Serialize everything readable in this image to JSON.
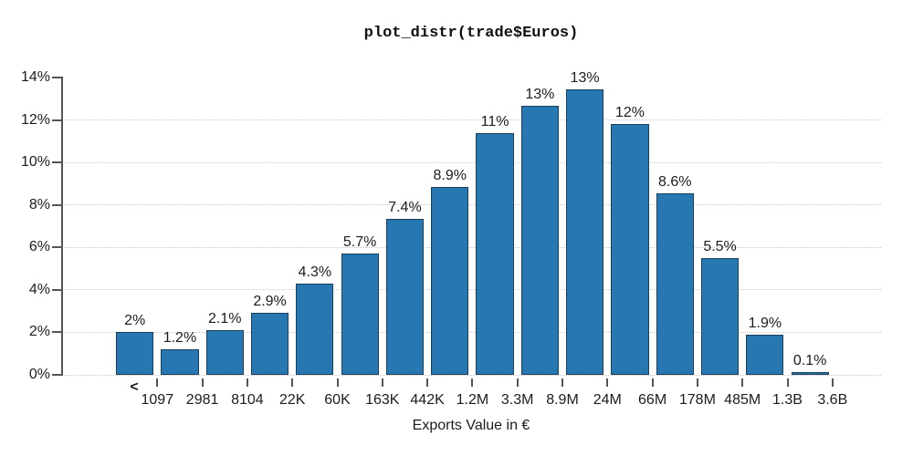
{
  "title": "plot_distr(trade$Euros)",
  "chart_data": {
    "type": "bar",
    "title": "plot_distr(trade$Euros)",
    "xlabel": "Exports Value in €",
    "ylabel": "",
    "ylim": [
      0,
      14
    ],
    "y_tick_values": [
      0,
      2,
      4,
      6,
      8,
      10,
      12,
      14
    ],
    "y_tick_labels": [
      "0%",
      "2%",
      "4%",
      "6%",
      "8%",
      "10%",
      "12%",
      "14%"
    ],
    "grid": "horizontal dotted lines at 0%-12% ticks, none at 14%",
    "legend": "none",
    "first_bin_marker": "<",
    "bin_boundary_labels": [
      "1097",
      "2981",
      "8104",
      "22K",
      "60K",
      "163K",
      "442K",
      "1.2M",
      "3.3M",
      "8.9M",
      "24M",
      "66M",
      "178M",
      "485M",
      "1.3B",
      "3.6B"
    ],
    "bars": [
      {
        "value_label": "2%",
        "value_pct": 2.0
      },
      {
        "value_label": "1.2%",
        "value_pct": 1.2
      },
      {
        "value_label": "2.1%",
        "value_pct": 2.1
      },
      {
        "value_label": "2.9%",
        "value_pct": 2.9
      },
      {
        "value_label": "4.3%",
        "value_pct": 4.3
      },
      {
        "value_label": "5.7%",
        "value_pct": 5.7
      },
      {
        "value_label": "7.4%",
        "value_pct": 7.35
      },
      {
        "value_label": "8.9%",
        "value_pct": 8.85
      },
      {
        "value_label": "11%",
        "value_pct": 11.4
      },
      {
        "value_label": "13%",
        "value_pct": 12.65
      },
      {
        "value_label": "13%",
        "value_pct": 13.45
      },
      {
        "value_label": "12%",
        "value_pct": 11.8
      },
      {
        "value_label": "8.6%",
        "value_pct": 8.55
      },
      {
        "value_label": "5.5%",
        "value_pct": 5.5
      },
      {
        "value_label": "1.9%",
        "value_pct": 1.9
      },
      {
        "value_label": "0.1%",
        "value_pct": 0.15
      }
    ],
    "colors": {
      "bar_fill": "#2677B2",
      "bar_border": "#1A3F5C",
      "grid_line": "#C8C8C8",
      "axis_line": "#555555",
      "text": "#1C1C1C"
    }
  }
}
